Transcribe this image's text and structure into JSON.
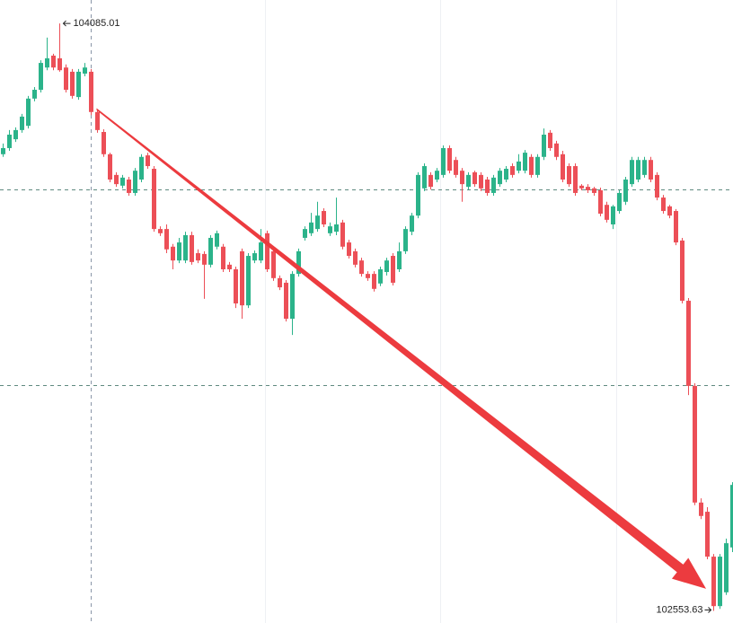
{
  "chart_data": {
    "type": "candlestick",
    "ylim": [
      102522,
      104146
    ],
    "up_color": "#2bb38a",
    "down_color": "#ec4f57",
    "open": [
      103744,
      103760,
      103783,
      103807,
      103818,
      103889,
      103912,
      103970,
      104001,
      103994,
      103970,
      103959,
      103893,
      103954,
      103959,
      103854,
      103802,
      103744,
      103690,
      103662,
      103678,
      103643,
      103678,
      103741,
      103706,
      103549,
      103549,
      103503,
      103467,
      103467,
      103533,
      103486,
      103484,
      103456,
      103503,
      103503,
      103456,
      103444,
      103491,
      103350,
      103467,
      103467,
      103538,
      103491,
      103421,
      103409,
      103315,
      103432,
      103526,
      103538,
      103549,
      103596,
      103538,
      103542,
      103566,
      103514,
      103491,
      103467,
      103432,
      103432,
      103407,
      103437,
      103479,
      103444,
      103491,
      103542,
      103584,
      103655,
      103690,
      103678,
      103690,
      103760,
      103729,
      103701,
      103659,
      103697,
      103690,
      103678,
      103643,
      103666,
      103678,
      103713,
      103701,
      103701,
      103737,
      103690,
      103737,
      103800,
      103772,
      103744,
      103713,
      103713,
      103662,
      103659,
      103655,
      103650,
      103612,
      103561,
      103596,
      103620,
      103666,
      103678,
      103690,
      103729,
      103690,
      103631,
      103608,
      103596,
      103519,
      103362,
      103140,
      102836,
      102812,
      102695,
      102566,
      102602,
      102719
    ],
    "close": [
      103760,
      103795,
      103807,
      103842,
      103889,
      103912,
      103982,
      103994,
      103970,
      103963,
      103912,
      103896,
      103959,
      103970,
      103854,
      103807,
      103744,
      103678,
      103666,
      103683,
      103643,
      103701,
      103737,
      103713,
      103549,
      103538,
      103496,
      103467,
      103514,
      103533,
      103463,
      103467,
      103456,
      103526,
      103538,
      103444,
      103444,
      103355,
      103350,
      103479,
      103486,
      103514,
      103444,
      103421,
      103397,
      103315,
      103432,
      103491,
      103549,
      103566,
      103584,
      103561,
      103556,
      103561,
      103503,
      103479,
      103456,
      103432,
      103421,
      103393,
      103444,
      103467,
      103409,
      103491,
      103549,
      103584,
      103690,
      103713,
      103659,
      103701,
      103760,
      103701,
      103690,
      103666,
      103690,
      103666,
      103655,
      103643,
      103683,
      103701,
      103706,
      103690,
      103725,
      103748,
      103690,
      103737,
      103795,
      103760,
      103737,
      103678,
      103666,
      103643,
      103655,
      103650,
      103643,
      103589,
      103573,
      103608,
      103643,
      103678,
      103729,
      103729,
      103729,
      103678,
      103631,
      103596,
      103584,
      103514,
      103362,
      103140,
      102836,
      102801,
      102695,
      102566,
      102695,
      102730,
      102882
    ],
    "high": [
      103772,
      103807,
      103814,
      103849,
      103896,
      103919,
      103989,
      104048,
      104006,
      104085.01,
      103978,
      103966,
      103966,
      103982,
      103966,
      103861,
      103809,
      103748,
      103697,
      103690,
      103685,
      103708,
      103744,
      103748,
      103713,
      103556,
      103561,
      103510,
      103526,
      103542,
      103542,
      103496,
      103491,
      103533,
      103545,
      103510,
      103463,
      103451,
      103498,
      103486,
      103493,
      103549,
      103545,
      103498,
      103428,
      103416,
      103439,
      103498,
      103556,
      103591,
      103620,
      103603,
      103566,
      103631,
      103573,
      103521,
      103498,
      103474,
      103439,
      103439,
      103451,
      103474,
      103486,
      103514,
      103556,
      103591,
      103697,
      103720,
      103697,
      103708,
      103767,
      103767,
      103737,
      103708,
      103697,
      103701,
      103697,
      103685,
      103690,
      103708,
      103713,
      103720,
      103744,
      103755,
      103744,
      103744,
      103811,
      103807,
      103779,
      103753,
      103720,
      103720,
      103666,
      103666,
      103659,
      103657,
      103620,
      103612,
      103650,
      103685,
      103737,
      103737,
      103737,
      103737,
      103697,
      103638,
      103612,
      103601,
      103526,
      103369,
      103147,
      102847,
      102824,
      102702,
      102702,
      102742,
      102889
    ],
    "low": [
      103737,
      103753,
      103776,
      103800,
      103811,
      103882,
      103905,
      103963,
      103963,
      103959,
      103905,
      103889,
      103886,
      103947,
      103846,
      103800,
      103737,
      103671,
      103659,
      103655,
      103636,
      103636,
      103671,
      103706,
      103542,
      103531,
      103486,
      103444,
      103460,
      103460,
      103456,
      103460,
      103367,
      103449,
      103496,
      103437,
      103437,
      103343,
      103315,
      103343,
      103460,
      103460,
      103437,
      103414,
      103390,
      103308,
      103273,
      103425,
      103519,
      103531,
      103542,
      103554,
      103531,
      103533,
      103496,
      103472,
      103449,
      103425,
      103414,
      103386,
      103400,
      103428,
      103402,
      103437,
      103484,
      103533,
      103577,
      103648,
      103652,
      103671,
      103683,
      103694,
      103683,
      103620,
      103652,
      103659,
      103648,
      103636,
      103636,
      103659,
      103671,
      103683,
      103694,
      103694,
      103683,
      103683,
      103729,
      103753,
      103729,
      103671,
      103659,
      103636,
      103650,
      103643,
      103636,
      103582,
      103566,
      103549,
      103589,
      103612,
      103659,
      103671,
      103683,
      103671,
      103624,
      103589,
      103577,
      103507,
      103355,
      103116,
      102829,
      102793,
      102688,
      102553.63,
      102559,
      102595,
      102707
    ]
  }
}
